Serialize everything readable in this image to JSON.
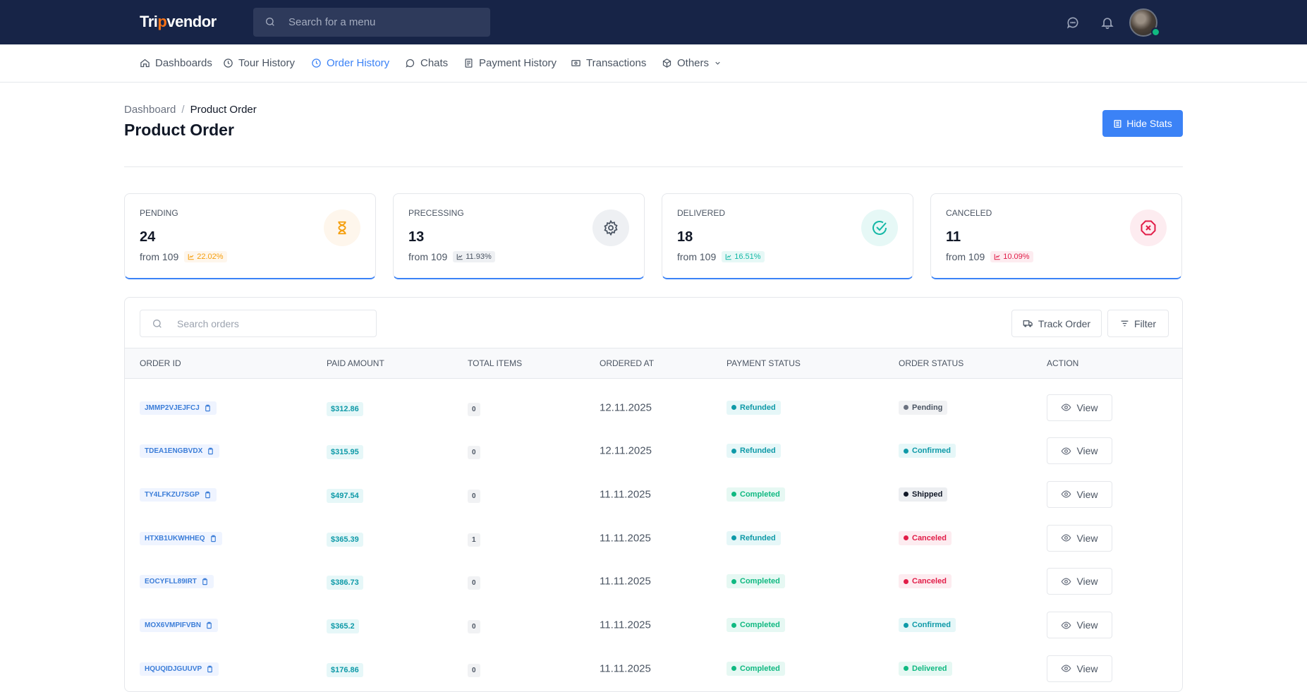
{
  "header": {
    "logo_left": "Tri",
    "logo_mark": "p",
    "logo_right": "vendor",
    "search_placeholder": "Search for a menu"
  },
  "nav": {
    "items": [
      {
        "label": "Dashboards",
        "icon": "home-icon"
      },
      {
        "label": "Tour History",
        "icon": "clock-icon"
      },
      {
        "label": "Order History",
        "icon": "clock-icon"
      },
      {
        "label": "Chats",
        "icon": "chat-icon"
      },
      {
        "label": "Payment History",
        "icon": "document-icon"
      },
      {
        "label": "Transactions",
        "icon": "money-icon"
      },
      {
        "label": "Others",
        "icon": "box-icon"
      }
    ]
  },
  "breadcrumb": {
    "root": "Dashboard",
    "separator": "/",
    "current": "Product Order"
  },
  "page_title": "Product Order",
  "hide_stats_label": "Hide Stats",
  "stats": [
    {
      "label": "PENDING",
      "value": "24",
      "from": "from 109",
      "pct": "22.02%",
      "icon": "hourglass-icon",
      "color": "#f59e0b",
      "bg": "#fef6ec"
    },
    {
      "label": "PRECESSING",
      "value": "13",
      "from": "from 109",
      "pct": "11.93%",
      "icon": "gear-icon",
      "color": "#4b5563",
      "bg": "#eef0f3"
    },
    {
      "label": "DELIVERED",
      "value": "18",
      "from": "from 109",
      "pct": "16.51%",
      "icon": "check-circle-icon",
      "color": "#14b8a6",
      "bg": "#e6f8f6"
    },
    {
      "label": "CANCELED",
      "value": "11",
      "from": "from 109",
      "pct": "10.09%",
      "icon": "x-octagon-icon",
      "color": "#e11d48",
      "bg": "#fdecf0"
    }
  ],
  "orders": {
    "search_placeholder": "Search orders",
    "track_label": "Track Order",
    "filter_label": "Filter",
    "columns": [
      "ORDER ID",
      "PAID AMOUNT",
      "TOTAL ITEMS",
      "ORDERED AT",
      "PAYMENT STATUS",
      "ORDER STATUS",
      "ACTION"
    ],
    "view_label": "View",
    "rows": [
      {
        "id": "JMMP2VJEJFCJ",
        "amount": "$312.86",
        "items": "0",
        "date": "12.11.2025",
        "payment": "Refunded",
        "status": "Pending"
      },
      {
        "id": "TDEA1ENGBVDX",
        "amount": "$315.95",
        "items": "0",
        "date": "12.11.2025",
        "payment": "Refunded",
        "status": "Confirmed"
      },
      {
        "id": "TY4LFKZU7SGP",
        "amount": "$497.54",
        "items": "0",
        "date": "11.11.2025",
        "payment": "Completed",
        "status": "Shipped"
      },
      {
        "id": "HTXB1UKWHHEQ",
        "amount": "$365.39",
        "items": "1",
        "date": "11.11.2025",
        "payment": "Refunded",
        "status": "Canceled"
      },
      {
        "id": "EOCYFLL89IRT",
        "amount": "$386.73",
        "items": "0",
        "date": "11.11.2025",
        "payment": "Completed",
        "status": "Canceled"
      },
      {
        "id": "MOX6VMPIFVBN",
        "amount": "$365.2",
        "items": "0",
        "date": "11.11.2025",
        "payment": "Completed",
        "status": "Confirmed"
      },
      {
        "id": "HQUQIDJGUUVP",
        "amount": "$176.86",
        "items": "0",
        "date": "11.11.2025",
        "payment": "Completed",
        "status": "Delivered"
      }
    ]
  },
  "status_colors": {
    "Refunded": {
      "bg": "#e6f7f8",
      "fg": "#0f9aa8",
      "dot": "#0f9aa8"
    },
    "Completed": {
      "bg": "#e6f8f3",
      "fg": "#10b981",
      "dot": "#10b981"
    },
    "Pending": {
      "bg": "#f1f2f4",
      "fg": "#4b5563",
      "dot": "#6b7280"
    },
    "Confirmed": {
      "bg": "#e6f7f8",
      "fg": "#0f9aa8",
      "dot": "#0f9aa8"
    },
    "Shipped": {
      "bg": "#eceef1",
      "fg": "#111827",
      "dot": "#111827"
    },
    "Canceled": {
      "bg": "#fdecf0",
      "fg": "#e11d48",
      "dot": "#e11d48"
    },
    "Delivered": {
      "bg": "#e6f8f3",
      "fg": "#10b981",
      "dot": "#10b981"
    }
  }
}
